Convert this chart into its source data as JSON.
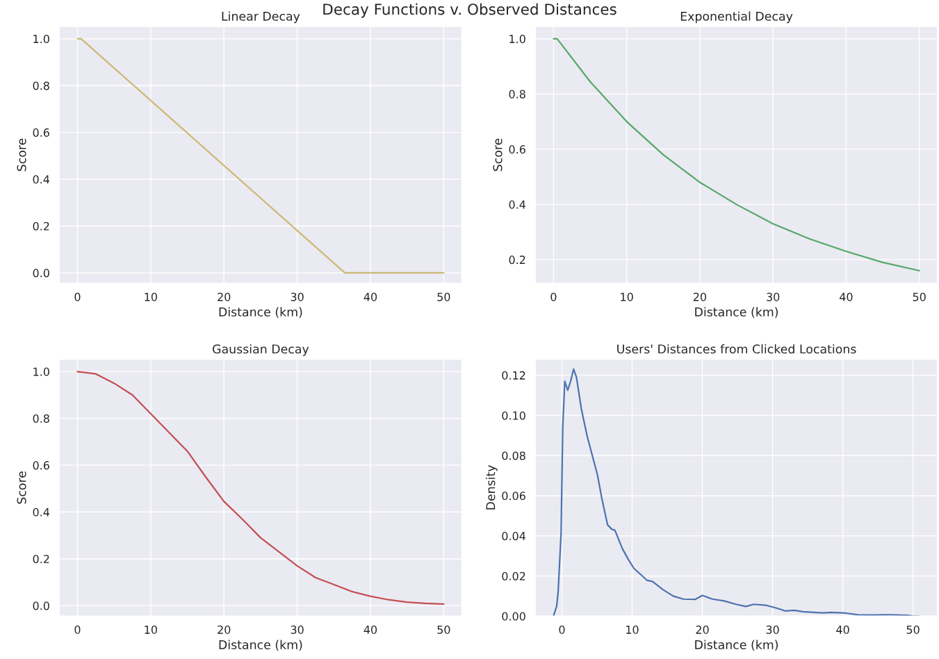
{
  "chart_data": [
    {
      "type": "line",
      "title": "Linear Decay",
      "annotations": [
        "Decay Functions v. Observed Distances"
      ],
      "xlabel": "Distance (km)",
      "ylabel": "Score",
      "grid": true,
      "xlim": [
        -2.5,
        52.5
      ],
      "ylim": [
        -0.045,
        1.053
      ],
      "xticks": [
        0,
        10,
        20,
        30,
        40,
        50
      ],
      "yticks": [
        {
          "value": 0,
          "label": "0.0"
        },
        0.2,
        0.4,
        0.6,
        0.8,
        {
          "value": 1,
          "label": "1.0"
        }
      ],
      "series": [
        {
          "color": "#ccb974",
          "x": [
            0,
            0.5,
            36.5,
            50
          ],
          "values": [
            1.0,
            1.0,
            0.0,
            0.0
          ]
        }
      ]
    },
    {
      "type": "line",
      "title": "Exponential Decay",
      "xlabel": "Distance (km)",
      "ylabel": "Score",
      "grid": true,
      "xlim": [
        -2.5,
        52.5
      ],
      "ylim": [
        0.114,
        1.045
      ],
      "xticks": [
        0,
        10,
        20,
        30,
        40,
        50
      ],
      "yticks": [
        0.2,
        0.4,
        0.6,
        0.8,
        {
          "value": 1,
          "label": "1.0"
        }
      ],
      "series": [
        {
          "color": "#55a868",
          "x": [
            0,
            0.5,
            5,
            10,
            15,
            20,
            25,
            30,
            35,
            40,
            45,
            50
          ],
          "values": [
            1.0,
            1.0,
            0.845,
            0.7,
            0.58,
            0.48,
            0.4,
            0.33,
            0.275,
            0.23,
            0.19,
            0.16
          ]
        }
      ]
    },
    {
      "type": "line",
      "title": "Gaussian Decay",
      "xlabel": "Distance (km)",
      "ylabel": "Score",
      "grid": true,
      "xlim": [
        -2.5,
        52.5
      ],
      "ylim": [
        -0.045,
        1.053
      ],
      "xticks": [
        0,
        10,
        20,
        30,
        40,
        50
      ],
      "yticks": [
        {
          "value": 0,
          "label": "0.0"
        },
        0.2,
        0.4,
        0.6,
        0.8,
        {
          "value": 1,
          "label": "1.0"
        }
      ],
      "series": [
        {
          "color": "#c44e52",
          "x": [
            0,
            2.5,
            5,
            7.5,
            10,
            12.5,
            15,
            17.5,
            20,
            22.5,
            25,
            27.5,
            30,
            32.5,
            35,
            37.5,
            40,
            42.5,
            45,
            47.5,
            50
          ],
          "values": [
            1.0,
            0.99,
            0.95,
            0.9,
            0.82,
            0.74,
            0.66,
            0.55,
            0.445,
            0.37,
            0.29,
            0.23,
            0.17,
            0.12,
            0.09,
            0.06,
            0.04,
            0.025,
            0.015,
            0.01,
            0.007
          ]
        }
      ]
    },
    {
      "type": "line",
      "title": "Users' Distances from Clicked Locations",
      "xlabel": "Distance (km)",
      "ylabel": "Density",
      "grid": true,
      "xlim": [
        -3.8,
        53.5
      ],
      "ylim": [
        0,
        0.128
      ],
      "xticks": [
        0,
        10,
        20,
        30,
        40,
        50
      ],
      "yticks": [
        {
          "value": 0,
          "label": "0.00"
        },
        {
          "value": 0.02,
          "label": "0.02"
        },
        {
          "value": 0.04,
          "label": "0.04"
        },
        {
          "value": 0.06,
          "label": "0.06"
        },
        {
          "value": 0.08,
          "label": "0.08"
        },
        {
          "value": 0.1,
          "label": "0.10"
        },
        {
          "value": 0.12,
          "label": "0.12"
        }
      ],
      "series": [
        {
          "color": "#4c72b0",
          "x": [
            -1.2,
            -0.75,
            -0.54,
            -0.12,
            0.12,
            0.41,
            0.83,
            1.24,
            1.66,
            2.07,
            2.78,
            3.6,
            4.44,
            5.06,
            5.68,
            6.5,
            7.1,
            7.55,
            8.6,
            9.4,
            10.25,
            11.3,
            12.1,
            12.9,
            14.4,
            15.85,
            17.3,
            19,
            20,
            21.45,
            23.1,
            24.8,
            26.2,
            27.3,
            29.1,
            30.6,
            31.8,
            33.1,
            34.3,
            37.2,
            38.3,
            40.5,
            42.2,
            44.3,
            46.8,
            49.2,
            50,
            50.9
          ],
          "values": [
            0,
            0.005,
            0.012,
            0.041,
            0.094,
            0.117,
            0.1125,
            0.117,
            0.123,
            0.119,
            0.103,
            0.0896,
            0.0785,
            0.0704,
            0.0587,
            0.0455,
            0.0433,
            0.0428,
            0.0337,
            0.0286,
            0.0238,
            0.0205,
            0.0179,
            0.0173,
            0.0132,
            0.01,
            0.0085,
            0.0084,
            0.0103,
            0.0085,
            0.0076,
            0.0059,
            0.0048,
            0.0059,
            0.0054,
            0.004,
            0.0026,
            0.0029,
            0.0022,
            0.0016,
            0.0019,
            0.0015,
            0.0007,
            0.0006,
            0.0007,
            0.0004,
            0.0001,
            0
          ]
        }
      ]
    }
  ]
}
